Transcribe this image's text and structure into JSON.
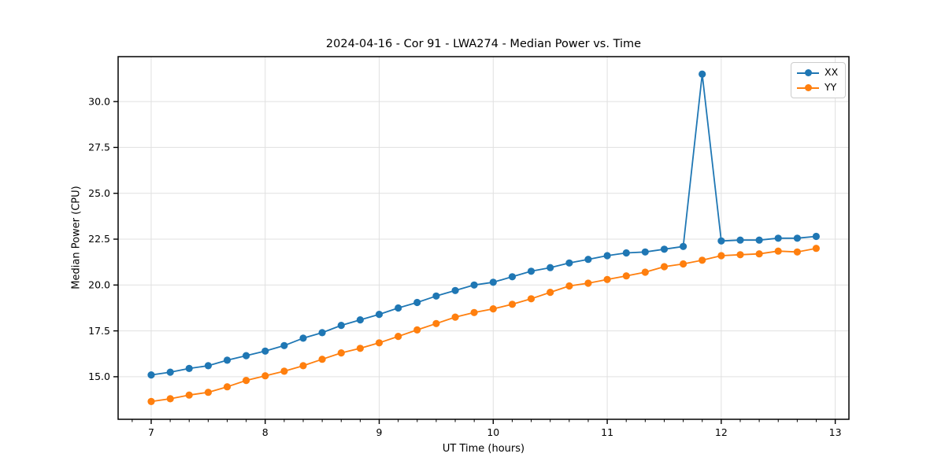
{
  "figure": {
    "title": "2024-04-16 - Cor 91 - LWA274 - Median Power vs. Time",
    "xlabel": "UT Time (hours)",
    "ylabel": "Median Power (CPU)"
  },
  "legend": {
    "items": [
      {
        "label": "XX",
        "color": "#1f77b4"
      },
      {
        "label": "YY",
        "color": "#ff7f0e"
      }
    ]
  },
  "chart_data": {
    "type": "line",
    "title": "2024-04-16 - Cor 91 - LWA274 - Median Power vs. Time",
    "xlabel": "UT Time (hours)",
    "ylabel": "Median Power (CPU)",
    "xlim": [
      6.71,
      13.12
    ],
    "ylim": [
      12.68,
      32.45
    ],
    "x_major_ticks": [
      7,
      8,
      9,
      10,
      11,
      12,
      13
    ],
    "x_minor_interval": 0.1667,
    "y_ticks": [
      15.0,
      17.5,
      20.0,
      22.5,
      25.0,
      27.5,
      30.0
    ],
    "grid": true,
    "grid_color": "#e0e0e0",
    "legend_position": "upper right",
    "marker": "circle",
    "x": [
      7.0,
      7.167,
      7.333,
      7.5,
      7.667,
      7.833,
      8.0,
      8.167,
      8.333,
      8.5,
      8.667,
      8.833,
      9.0,
      9.167,
      9.333,
      9.5,
      9.667,
      9.833,
      10.0,
      10.167,
      10.333,
      10.5,
      10.667,
      10.833,
      11.0,
      11.167,
      11.333,
      11.5,
      11.667,
      11.833,
      12.0,
      12.167,
      12.333,
      12.5,
      12.667,
      12.833
    ],
    "series": [
      {
        "name": "XX",
        "color": "#1f77b4",
        "values": [
          15.1,
          15.25,
          15.45,
          15.6,
          15.9,
          16.15,
          16.4,
          16.7,
          17.1,
          17.4,
          17.8,
          18.1,
          18.4,
          18.75,
          19.05,
          19.4,
          19.7,
          20.0,
          20.15,
          20.45,
          20.75,
          20.95,
          21.2,
          21.4,
          21.6,
          21.75,
          21.8,
          21.95,
          22.1,
          31.5,
          22.4,
          22.45,
          22.45,
          22.55,
          22.55,
          22.65
        ]
      },
      {
        "name": "YY",
        "color": "#ff7f0e",
        "values": [
          13.65,
          13.8,
          14.0,
          14.15,
          14.45,
          14.8,
          15.05,
          15.3,
          15.6,
          15.95,
          16.3,
          16.55,
          16.85,
          17.2,
          17.55,
          17.9,
          18.25,
          18.5,
          18.7,
          18.95,
          19.25,
          19.6,
          19.95,
          20.1,
          20.3,
          20.5,
          20.7,
          21.0,
          21.15,
          21.35,
          21.6,
          21.65,
          21.7,
          21.85,
          21.8,
          22.0
        ]
      }
    ]
  }
}
